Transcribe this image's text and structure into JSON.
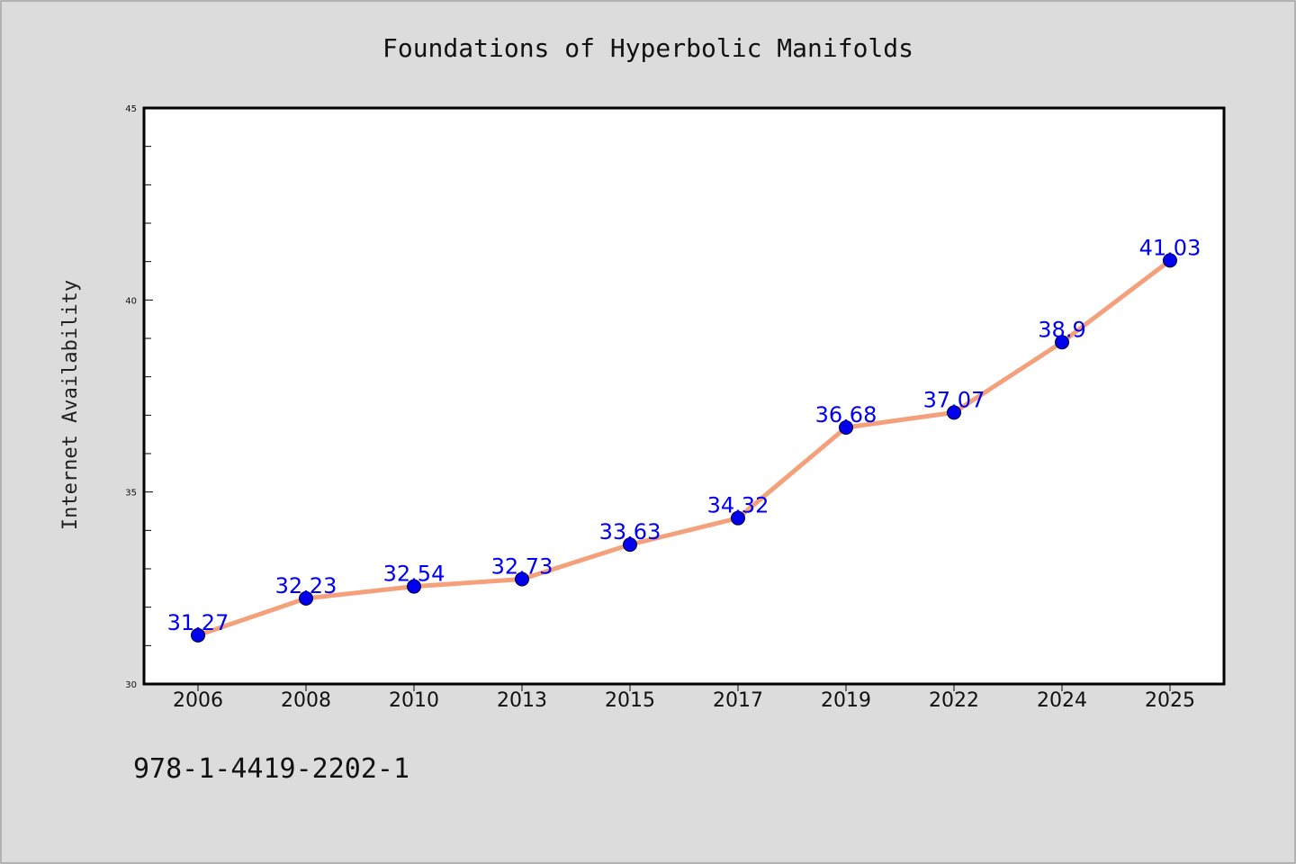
{
  "chart_data": {
    "type": "line",
    "title": "Foundations of Hyperbolic Manifolds",
    "xlabel": "",
    "ylabel": "Internet Availability",
    "categories": [
      "2006",
      "2008",
      "2010",
      "2013",
      "2015",
      "2017",
      "2019",
      "2022",
      "2024",
      "2025"
    ],
    "series": [
      {
        "values": [
          31.27,
          32.23,
          32.54,
          32.73,
          33.63,
          34.32,
          36.68,
          37.07,
          38.9,
          41.03
        ]
      }
    ],
    "data_labels": [
      "31.27",
      "32.23",
      "32.54",
      "32.73",
      "33.63",
      "34.32",
      "36.68",
      "37.07",
      "38.9",
      "41.03"
    ],
    "ylim": [
      30,
      45
    ],
    "yticks": [
      "30",
      "35",
      "40",
      "45"
    ],
    "grid": false,
    "colors": {
      "line": "#f4a07a",
      "marker": "#0000ee",
      "label": "#0000ee",
      "background": "#dcdcdc",
      "plot_bg": "#ffffff"
    }
  },
  "footer": {
    "isbn": "978-1-4419-2202-1"
  }
}
